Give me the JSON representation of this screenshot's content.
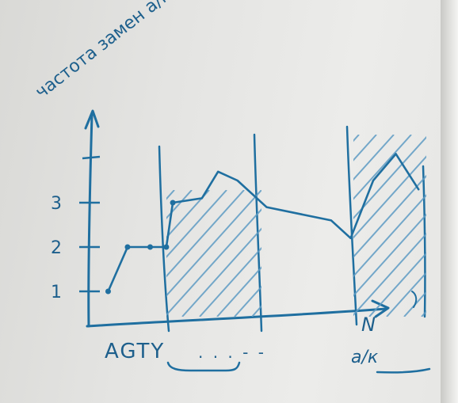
{
  "colors": {
    "ink": "#1f6fa0",
    "hatch": "#5f9cc4",
    "board": "#e6e6e4"
  },
  "chart_data": {
    "type": "line",
    "ylabel": "частота замен а/к",
    "xlabel": "а/к",
    "x_end_label": "N",
    "x_tick_labels": [
      "AGTY",
      ". . . - -"
    ],
    "y_ticks": [
      {
        "label": "1",
        "value": 1
      },
      {
        "label": "2",
        "value": 2
      },
      {
        "label": "3",
        "value": 3
      }
    ],
    "ylim": [
      0.5,
      4.6
    ],
    "xlim": [
      0,
      100
    ],
    "series": [
      {
        "values": [
          {
            "x": 6,
            "y": 1.0
          },
          {
            "x": 12,
            "y": 2.0
          },
          {
            "x": 19,
            "y": 2.0
          },
          {
            "x": 24,
            "y": 2.0
          },
          {
            "x": 26,
            "y": 3.0
          },
          {
            "x": 35,
            "y": 3.1
          },
          {
            "x": 40,
            "y": 3.7
          },
          {
            "x": 46,
            "y": 3.5
          },
          {
            "x": 55,
            "y": 2.9
          },
          {
            "x": 75,
            "y": 2.6
          },
          {
            "x": 81,
            "y": 2.2
          },
          {
            "x": 88,
            "y": 3.5
          },
          {
            "x": 95,
            "y": 4.1
          },
          {
            "x": 102,
            "y": 3.3
          }
        ]
      }
    ],
    "highlight_regions": [
      {
        "x_start": 26,
        "x_end": 55,
        "pattern": "hatched"
      },
      {
        "x_start": 84,
        "x_end": 102,
        "pattern": "hatched"
      }
    ]
  }
}
